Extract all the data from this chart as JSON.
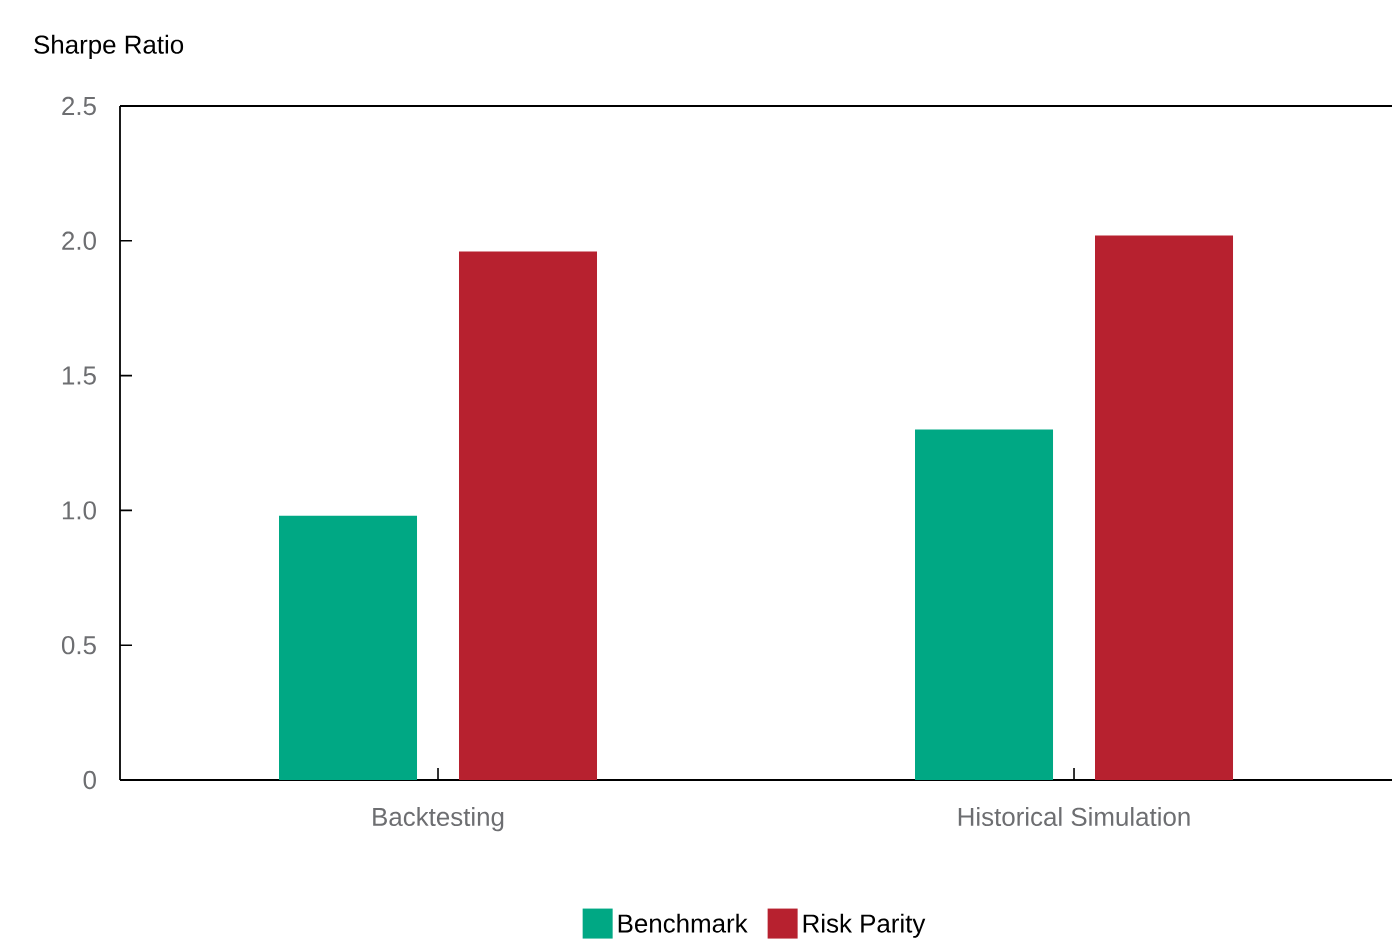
{
  "chart_data": {
    "type": "bar",
    "ylabel": "Sharpe Ratio",
    "categories": [
      "Backtesting",
      "Historical Simulation"
    ],
    "series": [
      {
        "name": "Benchmark",
        "color": "#00a884",
        "values": [
          0.98,
          1.3
        ]
      },
      {
        "name": "Risk Parity",
        "color": "#b7212f",
        "values": [
          1.96,
          2.02
        ]
      }
    ],
    "ylim": [
      0,
      2.5
    ],
    "yticks": [
      {
        "value": 0,
        "label": "0"
      },
      {
        "value": 0.5,
        "label": "0.5"
      },
      {
        "value": 1,
        "label": "1.0"
      },
      {
        "value": 1.5,
        "label": "1.5"
      },
      {
        "value": 2,
        "label": "2.0"
      },
      {
        "value": 2.5,
        "label": "2.5"
      }
    ],
    "legend": "bottom"
  }
}
